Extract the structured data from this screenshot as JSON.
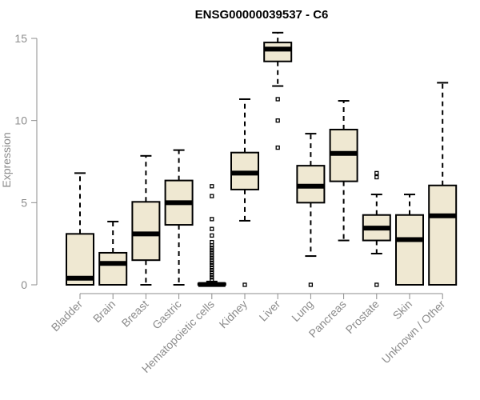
{
  "chart_data": {
    "type": "boxplot",
    "title": "ENSG00000039537 - C6",
    "xlabel": "",
    "ylabel": "Expression",
    "ylim": [
      0,
      15.5
    ],
    "yticks": [
      0,
      5,
      10,
      15
    ],
    "ytick_labels": [
      "0",
      "5",
      "10",
      "15"
    ],
    "box_fill": "#efe8d2",
    "box_stroke": "#000000",
    "axis_color": "#8c8c8c",
    "categories": [
      "Bladder",
      "Brain",
      "Breast",
      "Gastric",
      "Hematopoietic cells",
      "Kidney",
      "Liver",
      "Lung",
      "Pancreas",
      "Prostate",
      "Skin",
      "Unknown / Other"
    ],
    "boxes": [
      {
        "name": "Bladder",
        "whisker_low": 0,
        "q1": 0,
        "median": 0.4,
        "q3": 3.1,
        "whisker_high": 6.8,
        "outliers": []
      },
      {
        "name": "Brain",
        "whisker_low": 0,
        "q1": 0,
        "median": 1.3,
        "q3": 1.95,
        "whisker_high": 3.85,
        "outliers": []
      },
      {
        "name": "Breast",
        "whisker_low": 0,
        "q1": 1.5,
        "median": 3.1,
        "q3": 5.05,
        "whisker_high": 7.85,
        "outliers": []
      },
      {
        "name": "Gastric",
        "whisker_low": 0,
        "q1": 3.65,
        "median": 5.0,
        "q3": 6.35,
        "whisker_high": 8.2,
        "outliers": []
      },
      {
        "name": "Hematopoietic cells",
        "whisker_low": 0,
        "q1": 0,
        "median": 0.02,
        "q3": 0.08,
        "whisker_high": 0.2,
        "outliers": [
          0.3,
          0.45,
          0.6,
          0.75,
          0.9,
          1.05,
          1.2,
          1.35,
          1.5,
          1.65,
          1.8,
          1.95,
          2.1,
          2.25,
          2.4,
          2.6,
          3.0,
          3.4,
          4.0,
          5.4,
          6.0
        ]
      },
      {
        "name": "Kidney",
        "whisker_low": 3.9,
        "q1": 5.8,
        "median": 6.8,
        "q3": 8.05,
        "whisker_high": 11.3,
        "outliers": [
          0.0
        ]
      },
      {
        "name": "Liver",
        "whisker_low": 12.1,
        "q1": 13.6,
        "median": 14.35,
        "q3": 14.75,
        "whisker_high": 15.35,
        "outliers": [
          11.3,
          10.0,
          8.35
        ]
      },
      {
        "name": "Lung",
        "whisker_low": 1.75,
        "q1": 5.0,
        "median": 6.0,
        "q3": 7.25,
        "whisker_high": 9.2,
        "outliers": [
          0.0
        ]
      },
      {
        "name": "Pancreas",
        "whisker_low": 2.7,
        "q1": 6.3,
        "median": 8.0,
        "q3": 9.45,
        "whisker_high": 11.2,
        "outliers": []
      },
      {
        "name": "Prostate",
        "whisker_low": 1.9,
        "q1": 2.7,
        "median": 3.45,
        "q3": 4.25,
        "whisker_high": 5.5,
        "outliers": [
          6.55,
          6.8,
          0.0
        ]
      },
      {
        "name": "Skin",
        "whisker_low": 0,
        "q1": 0,
        "median": 2.75,
        "q3": 4.25,
        "whisker_high": 5.5,
        "outliers": []
      },
      {
        "name": "Unknown / Other",
        "whisker_low": 0,
        "q1": 0,
        "median": 4.2,
        "q3": 6.05,
        "whisker_high": 12.3,
        "outliers": []
      }
    ]
  }
}
